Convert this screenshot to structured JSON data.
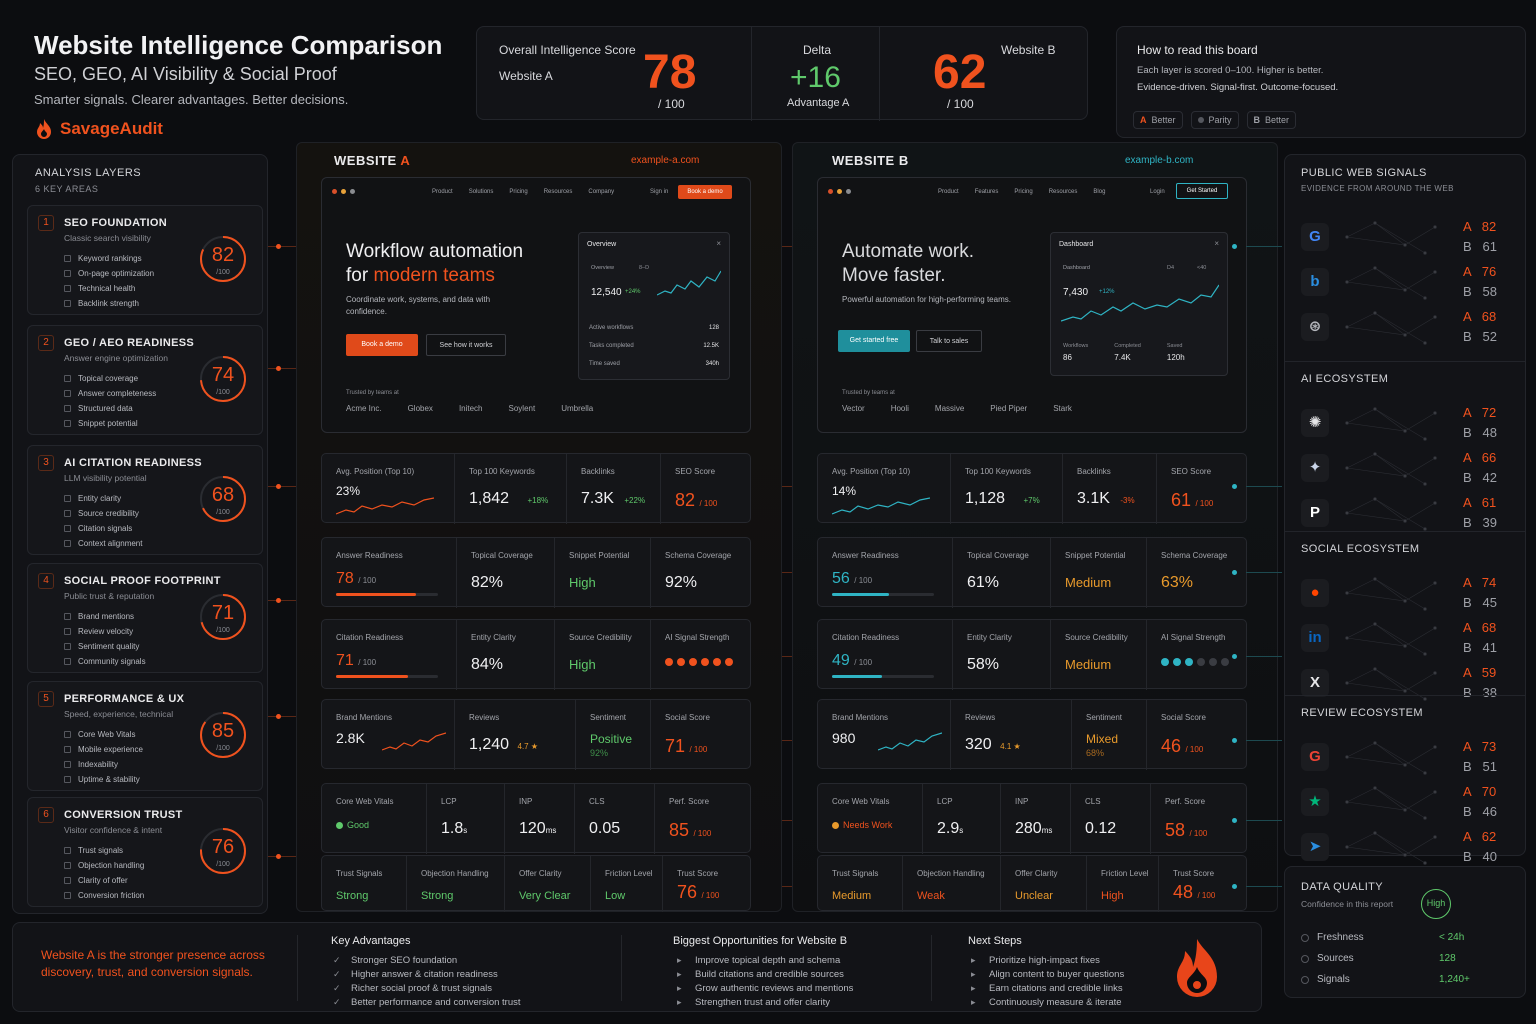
{
  "header": {
    "title": "Website Intelligence Comparison",
    "subtitle": "SEO, GEO, AI Visibility & Social Proof",
    "tagline": "Smarter signals. Clearer advantages. Better decisions.",
    "brand": "SavageAudit"
  },
  "score": {
    "label": "Overall Intelligence Score",
    "a_label": "Website A",
    "a_value": "78",
    "a_denom": "/ 100",
    "delta_label": "Delta",
    "delta_value": "+16",
    "delta_sub": "Advantage A",
    "b_label": "Website B",
    "b_value": "62",
    "b_denom": "/ 100"
  },
  "howto": {
    "title": "How to read this board",
    "line1": "Each layer is scored 0–100. Higher is better.",
    "line2": "Evidence-driven. Signal-first. Outcome-focused.",
    "legend": [
      {
        "key": "A",
        "label": "Better"
      },
      {
        "key": "",
        "label": "Parity"
      },
      {
        "key": "B",
        "label": "Better"
      }
    ]
  },
  "layers": {
    "title": "ANALYSIS LAYERS",
    "subtitle": "6 KEY AREAS",
    "items": [
      {
        "num": "1",
        "name": "SEO FOUNDATION",
        "sub": "Classic search visibility",
        "score": "82",
        "checks": [
          "Keyword rankings",
          "On-page optimization",
          "Technical health",
          "Backlink strength"
        ]
      },
      {
        "num": "2",
        "name": "GEO / AEO READINESS",
        "sub": "Answer engine optimization",
        "score": "74",
        "checks": [
          "Topical coverage",
          "Answer completeness",
          "Structured data",
          "Snippet potential"
        ]
      },
      {
        "num": "3",
        "name": "AI CITATION READINESS",
        "sub": "LLM visibility potential",
        "score": "68",
        "checks": [
          "Entity clarity",
          "Source credibility",
          "Citation signals",
          "Context alignment"
        ]
      },
      {
        "num": "4",
        "name": "SOCIAL PROOF FOOTPRINT",
        "sub": "Public trust & reputation",
        "score": "71",
        "checks": [
          "Brand mentions",
          "Review velocity",
          "Sentiment quality",
          "Community signals"
        ]
      },
      {
        "num": "5",
        "name": "PERFORMANCE & UX",
        "sub": "Speed, experience, technical",
        "score": "85",
        "checks": [
          "Core Web Vitals",
          "Mobile experience",
          "Indexability",
          "Uptime & stability"
        ]
      },
      {
        "num": "6",
        "name": "CONVERSION TRUST",
        "sub": "Visitor confidence & intent",
        "score": "76",
        "checks": [
          "Trust signals",
          "Objection handling",
          "Clarity of offer",
          "Conversion friction"
        ]
      }
    ],
    "denom": "/100"
  },
  "site_a": {
    "title_prefix": "WEBSITE",
    "title_letter": "A",
    "domain": "example-a.com",
    "nav": [
      "Product",
      "Solutions",
      "Pricing",
      "Resources",
      "Company"
    ],
    "signin": "Sign in",
    "cta_nav": "Book a demo",
    "hero_line1": "Workflow automation",
    "hero_line2a": "for ",
    "hero_line2b": "modern teams",
    "hero_sub": "Coordinate work, systems, and data with confidence.",
    "btn_primary": "Book a demo",
    "btn_secondary": "See how it works",
    "dash_title": "Overview",
    "dash_tab": "Overview",
    "dash_tab2": "8–D",
    "dash_value": "12,540",
    "dash_delta": "+24%",
    "dash_rows": [
      [
        "Active workflows",
        "128"
      ],
      [
        "Tasks completed",
        "12.5K"
      ],
      [
        "Time saved",
        "340h"
      ]
    ],
    "trusted": "Trusted by teams at",
    "logos": [
      "Acme Inc.",
      "Globex",
      "Initech",
      "Soylent",
      "Umbrella"
    ]
  },
  "site_b": {
    "title_prefix": "WEBSITE",
    "title_letter": "B",
    "domain": "example-b.com",
    "nav": [
      "Product",
      "Features",
      "Pricing",
      "Resources",
      "Blog"
    ],
    "signin": "Login",
    "cta_nav": "Get Started",
    "hero_line1": "Automate work.",
    "hero_line2": "Move faster.",
    "hero_sub": "Powerful automation for high-performing teams.",
    "btn_primary": "Get started free",
    "btn_secondary": "Talk to sales",
    "dash_title": "Dashboard",
    "dash_tab": "Dashboard",
    "dash_tab2": "D4",
    "dash_tab3": "<40",
    "dash_value": "7,430",
    "dash_delta": "+12%",
    "dash_stats": [
      [
        "Workflows",
        "86"
      ],
      [
        "Completed",
        "7.4K"
      ],
      [
        "Saved",
        "120h"
      ]
    ],
    "trusted": "Trusted by teams at",
    "logos": [
      "Vector",
      "Hooli",
      "Massive",
      "Pied Piper",
      "Stark"
    ]
  },
  "metrics_a": {
    "seo": {
      "pos_label": "Avg. Position (Top 10)",
      "pos": "23%",
      "kw_label": "Top 100 Keywords",
      "kw": "1,842",
      "kw_delta": "+18%",
      "bl_label": "Backlinks",
      "bl": "7.3K",
      "bl_delta": "+22%",
      "score_label": "SEO Score",
      "score": "82",
      "denom": "/ 100"
    },
    "geo": {
      "ar_label": "Answer Readiness",
      "ar": "78",
      "ar_denom": "/ 100",
      "ar_fill": 0.78,
      "tc_label": "Topical Coverage",
      "tc": "82%",
      "sp_label": "Snippet Potential",
      "sp": "High",
      "sc_label": "Schema Coverage",
      "sc": "92%"
    },
    "ai": {
      "cr_label": "Citation Readiness",
      "cr": "71",
      "cr_denom": "/ 100",
      "cr_fill": 0.71,
      "ec_label": "Entity Clarity",
      "ec": "84%",
      "scred_label": "Source Credibility",
      "scred": "High",
      "ai_label": "AI Signal Strength",
      "ai_dots": 6
    },
    "social": {
      "bm_label": "Brand Mentions",
      "bm": "2.8K",
      "rv_label": "Reviews",
      "rv": "1,240",
      "rv_rating": "4.7",
      "se_label": "Sentiment",
      "se": "Positive",
      "se_pct": "92%",
      "ss_label": "Social Score",
      "ss": "71",
      "denom": "/ 100"
    },
    "perf": {
      "cwv_label": "Core Web Vitals",
      "cwv": "Good",
      "lcp_label": "LCP",
      "lcp": "1.8",
      "lcp_unit": "s",
      "inp_label": "INP",
      "inp": "120",
      "inp_unit": "ms",
      "cls_label": "CLS",
      "cls": "0.05",
      "ps_label": "Perf. Score",
      "ps": "85",
      "denom": "/ 100"
    },
    "trust": {
      "ts_label": "Trust Signals",
      "ts": "Strong",
      "oh_label": "Objection Handling",
      "oh": "Strong",
      "oc_label": "Offer Clarity",
      "oc": "Very Clear",
      "fl_label": "Friction Level",
      "fl": "Low",
      "tsc_label": "Trust Score",
      "tsc": "76",
      "denom": "/ 100"
    }
  },
  "metrics_b": {
    "seo": {
      "pos_label": "Avg. Position (Top 10)",
      "pos": "14%",
      "kw_label": "Top 100 Keywords",
      "kw": "1,128",
      "kw_delta": "+7%",
      "bl_label": "Backlinks",
      "bl": "3.1K",
      "bl_delta": "-3%",
      "score_label": "SEO Score",
      "score": "61",
      "denom": "/ 100"
    },
    "geo": {
      "ar_label": "Answer Readiness",
      "ar": "56",
      "ar_denom": "/ 100",
      "ar_fill": 0.56,
      "tc_label": "Topical Coverage",
      "tc": "61%",
      "sp_label": "Snippet Potential",
      "sp": "Medium",
      "sc_label": "Schema Coverage",
      "sc": "63%"
    },
    "ai": {
      "cr_label": "Citation Readiness",
      "cr": "49",
      "cr_denom": "/ 100",
      "cr_fill": 0.49,
      "ec_label": "Entity Clarity",
      "ec": "58%",
      "scred_label": "Source Credibility",
      "scred": "Medium",
      "ai_label": "AI Signal Strength",
      "ai_dots": 3
    },
    "social": {
      "bm_label": "Brand Mentions",
      "bm": "980",
      "rv_label": "Reviews",
      "rv": "320",
      "rv_rating": "4.1",
      "se_label": "Sentiment",
      "se": "Mixed",
      "se_pct": "68%",
      "ss_label": "Social Score",
      "ss": "46",
      "denom": "/ 100"
    },
    "perf": {
      "cwv_label": "Core Web Vitals",
      "cwv": "Needs Work",
      "lcp_label": "LCP",
      "lcp": "2.9",
      "lcp_unit": "s",
      "inp_label": "INP",
      "inp": "280",
      "inp_unit": "ms",
      "cls_label": "CLS",
      "cls": "0.12",
      "ps_label": "Perf. Score",
      "ps": "58",
      "denom": "/ 100"
    },
    "trust": {
      "ts_label": "Trust Signals",
      "ts": "Medium",
      "oh_label": "Objection Handling",
      "oh": "Weak",
      "oc_label": "Offer Clarity",
      "oc": "Unclear",
      "fl_label": "Friction Level",
      "fl": "High",
      "tsc_label": "Trust Score",
      "tsc": "48",
      "denom": "/ 100"
    }
  },
  "signals": {
    "title": "PUBLIC WEB SIGNALS",
    "subtitle": "EVIDENCE FROM AROUND THE WEB",
    "sections": [
      {
        "title": "",
        "rows": [
          {
            "icon": "google-icon",
            "glyph": "G",
            "color": "#4285f4",
            "a": "82",
            "b": "61"
          },
          {
            "icon": "bing-icon",
            "glyph": "b",
            "color": "#2a8ee0",
            "a": "76",
            "b": "58"
          },
          {
            "icon": "search-engine-icon",
            "glyph": "⊛",
            "color": "#b5b7bd",
            "a": "68",
            "b": "52"
          }
        ]
      },
      {
        "title": "AI ECOSYSTEM",
        "rows": [
          {
            "icon": "openai-icon",
            "glyph": "✺",
            "color": "#e6e6e8",
            "a": "72",
            "b": "48"
          },
          {
            "icon": "gemini-icon",
            "glyph": "✦",
            "color": "#c9d4e8",
            "a": "66",
            "b": "42"
          },
          {
            "icon": "perplexity-icon",
            "glyph": "P",
            "color": "#ffffff",
            "a": "61",
            "b": "39"
          }
        ]
      },
      {
        "title": "SOCIAL ECOSYSTEM",
        "rows": [
          {
            "icon": "reddit-icon",
            "glyph": "●",
            "color": "#ff4500",
            "a": "74",
            "b": "45"
          },
          {
            "icon": "linkedin-icon",
            "glyph": "in",
            "color": "#0a66c2",
            "a": "68",
            "b": "41"
          },
          {
            "icon": "x-icon",
            "glyph": "X",
            "color": "#e6e6e8",
            "a": "59",
            "b": "38"
          }
        ]
      },
      {
        "title": "REVIEW ECOSYSTEM",
        "rows": [
          {
            "icon": "google-reviews-icon",
            "glyph": "G",
            "color": "#ea4335",
            "a": "73",
            "b": "51"
          },
          {
            "icon": "trustpilot-icon",
            "glyph": "★",
            "color": "#00b67a",
            "a": "70",
            "b": "46"
          },
          {
            "icon": "capterra-icon",
            "glyph": "➤",
            "color": "#2a8ee0",
            "a": "62",
            "b": "40"
          }
        ]
      }
    ]
  },
  "data_quality": {
    "title": "DATA QUALITY",
    "subtitle": "Confidence in this report",
    "badge": "High",
    "rows": [
      [
        "Freshness",
        "< 24h"
      ],
      [
        "Sources",
        "128"
      ],
      [
        "Signals",
        "1,240+"
      ]
    ]
  },
  "bottom": {
    "summary": "Website A is the stronger presence across discovery, trust, and conversion signals.",
    "adv_title": "Key Advantages",
    "adv": [
      "Stronger SEO foundation",
      "Higher answer & citation readiness",
      "Richer social proof & trust signals",
      "Better performance and conversion trust"
    ],
    "opp_title": "Biggest Opportunities for Website B",
    "opp": [
      "Improve topical depth and schema",
      "Build citations and credible sources",
      "Grow authentic reviews and mentions",
      "Strengthen trust and offer clarity"
    ],
    "next_title": "Next Steps",
    "next": [
      "Prioritize high-impact fixes",
      "Align content to buyer questions",
      "Earn citations and credible links",
      "Continuously measure & iterate"
    ]
  },
  "colors": {
    "accent_a": "#f0521e",
    "accent_b": "#2fb4c4",
    "good": "#5fc96b",
    "warn": "#e89a2c"
  }
}
